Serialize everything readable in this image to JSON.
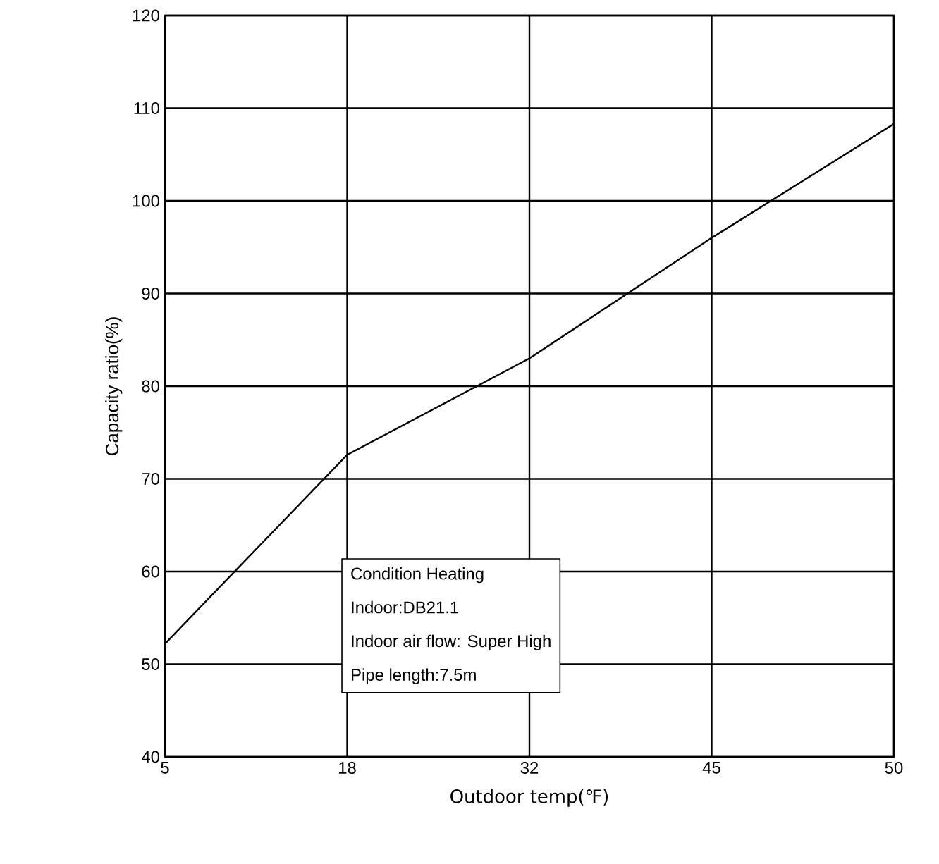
{
  "chart_data": {
    "type": "line",
    "xlabel": "Outdoor temp(℉)",
    "ylabel": "Capacity ratio(%)",
    "categories": [
      "5",
      "18",
      "32",
      "45",
      "50"
    ],
    "values": [
      52.2,
      72.6,
      83,
      96,
      108.3
    ],
    "color": "#000000",
    "ylim": [
      40,
      120
    ],
    "yticks": [
      40,
      50,
      60,
      70,
      80,
      90,
      100,
      110,
      120
    ],
    "grid": true,
    "annotations": [
      "Condition  Heating",
      "Indoor:DB21.1",
      "Indoor air flow: Super High",
      "Pipe length:7.5m"
    ]
  }
}
